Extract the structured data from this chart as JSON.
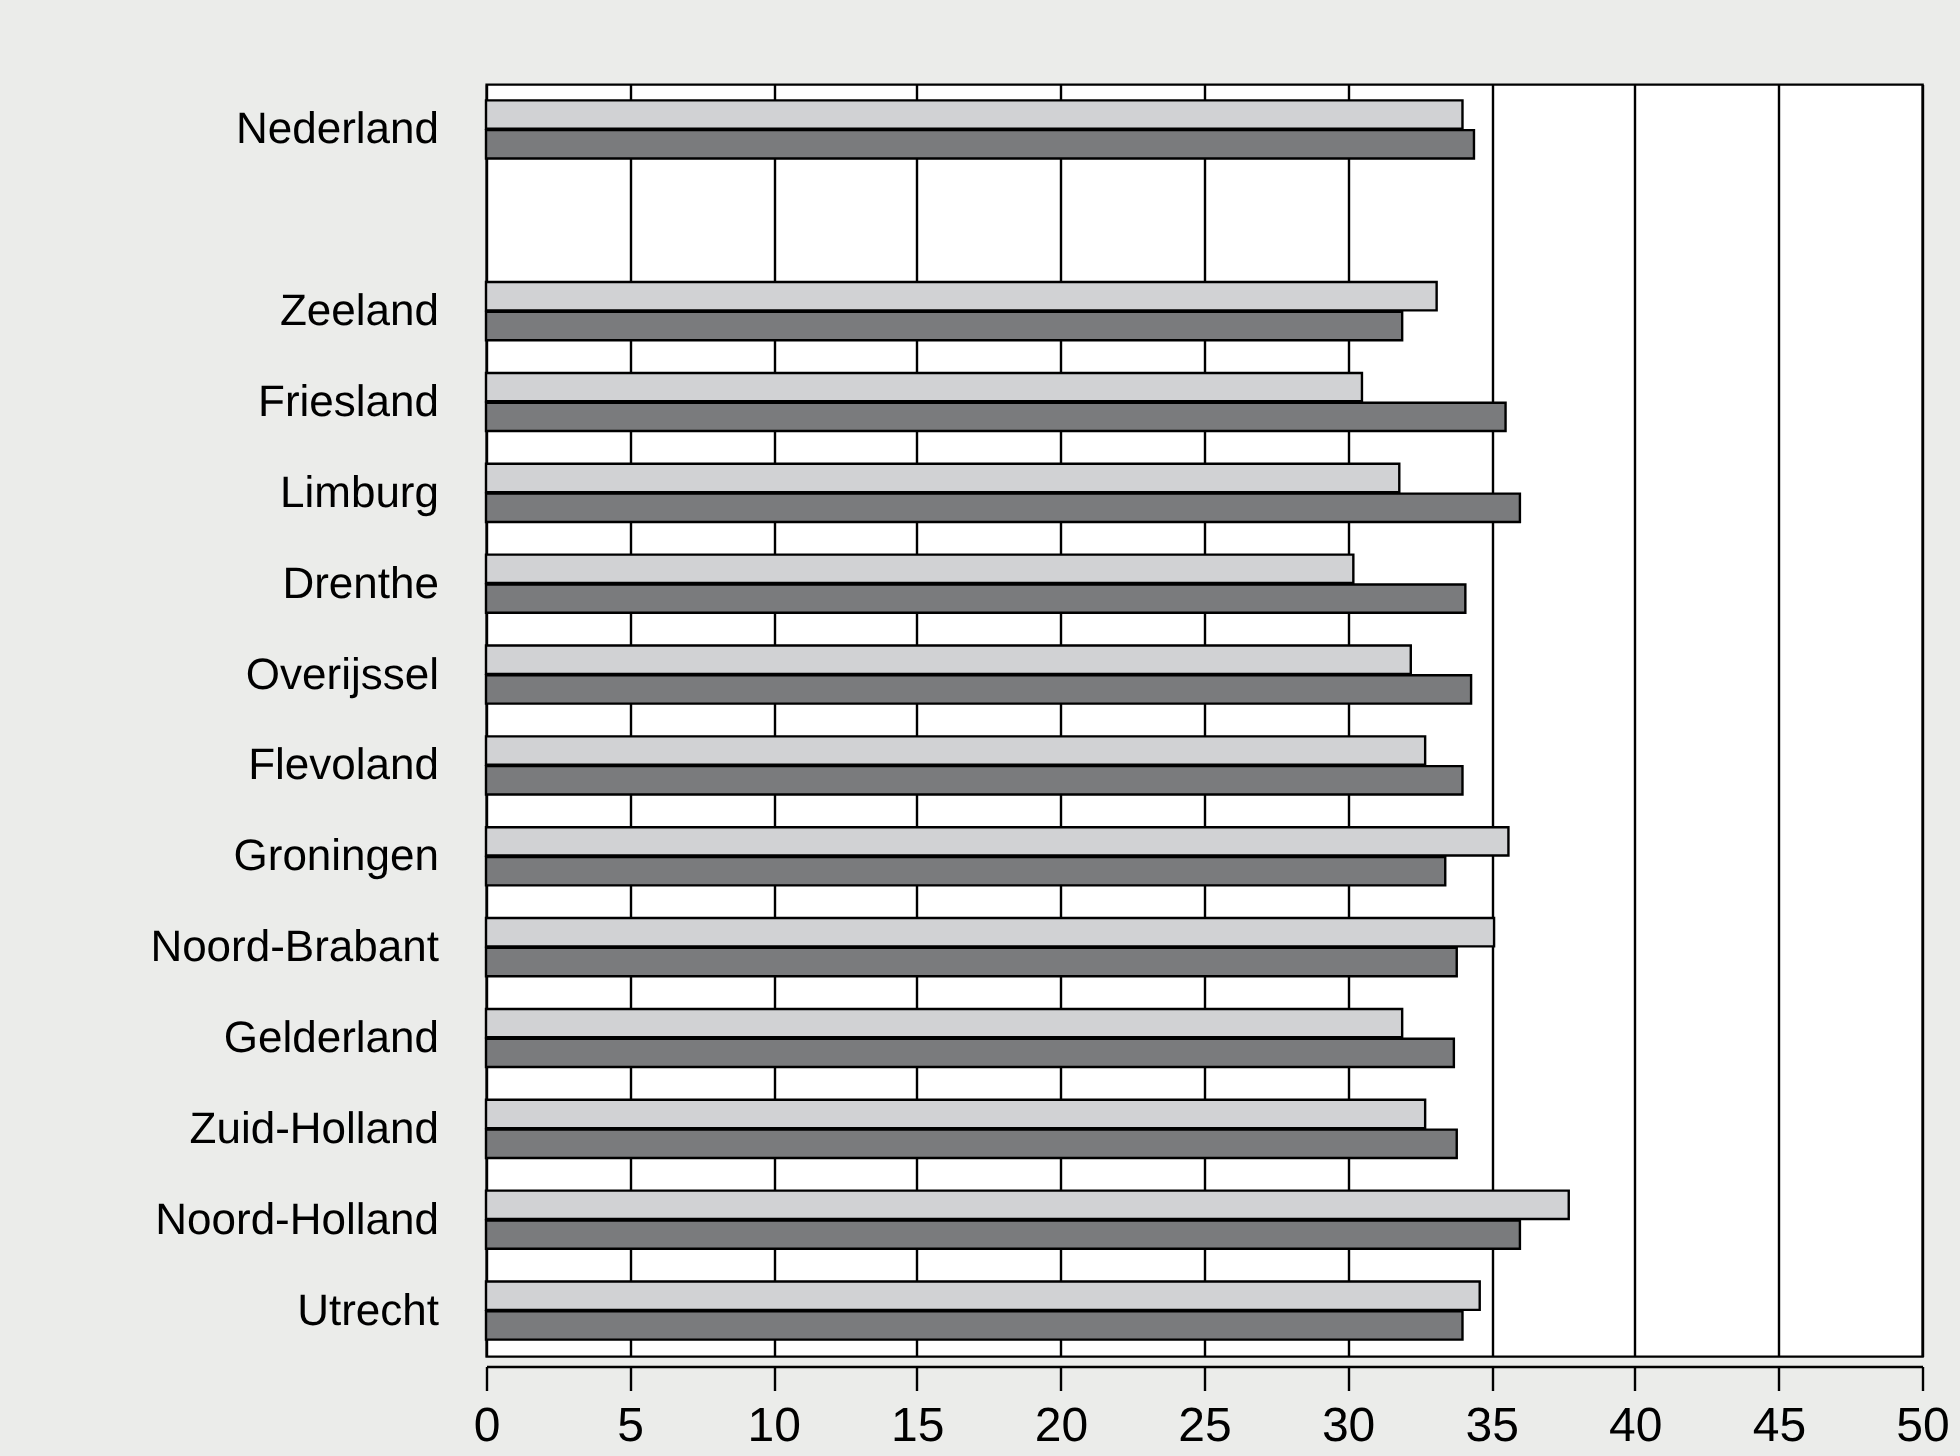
{
  "chart_data": {
    "type": "bar",
    "orientation": "horizontal",
    "categories": [
      "Nederland",
      null,
      "Zeeland",
      "Friesland",
      "Limburg",
      "Drenthe",
      "Overijssel",
      "Flevoland",
      "Groningen",
      "Noord-Brabant",
      "Gelderland",
      "Zuid-Holland",
      "Noord-Holland",
      "Utrecht"
    ],
    "series": [
      {
        "color": "#d1d2d4",
        "values": [
          34.0,
          null,
          33.1,
          30.5,
          31.8,
          30.2,
          32.2,
          32.7,
          35.6,
          35.1,
          31.9,
          32.7,
          37.7,
          34.6
        ]
      },
      {
        "color": "#7a7b7d",
        "values": [
          34.4,
          null,
          31.9,
          35.5,
          36.0,
          34.1,
          34.3,
          34.0,
          33.4,
          33.8,
          33.7,
          33.8,
          36.0,
          34.0
        ]
      }
    ],
    "xlim": [
      0,
      50
    ],
    "xticks": [
      0,
      5,
      10,
      15,
      20,
      25,
      30,
      35,
      40,
      45,
      50
    ],
    "grid": "x",
    "legend": false
  }
}
